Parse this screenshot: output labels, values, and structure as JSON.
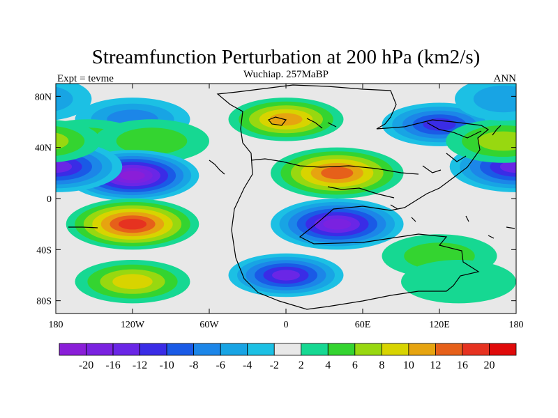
{
  "chart_data": {
    "type": "heatmap",
    "title": "Streamfunction Perturbation at 200 hPa (km2/s)",
    "subtitle": "Wuchiap. 257MaBP",
    "left_label": "Expt = tevme",
    "right_label": "ANN",
    "xlim": [
      -180,
      180
    ],
    "ylim": [
      -90,
      90
    ],
    "x_ticks": [
      {
        "value": -180,
        "label": "180"
      },
      {
        "value": -120,
        "label": "120W"
      },
      {
        "value": -60,
        "label": "60W"
      },
      {
        "value": 0,
        "label": "0"
      },
      {
        "value": 60,
        "label": "60E"
      },
      {
        "value": 120,
        "label": "120E"
      },
      {
        "value": 180,
        "label": "180"
      }
    ],
    "y_ticks": [
      {
        "value": 80,
        "label": "80N"
      },
      {
        "value": 40,
        "label": "40N"
      },
      {
        "value": 0,
        "label": "0"
      },
      {
        "value": -40,
        "label": "40S"
      },
      {
        "value": -80,
        "label": "80S"
      }
    ],
    "colorbar": {
      "levels": [
        "-20",
        "-16",
        "-12",
        "-10",
        "-8",
        "-6",
        "-4",
        "-2",
        "2",
        "4",
        "6",
        "8",
        "10",
        "12",
        "16",
        "20"
      ],
      "colors": [
        "#8a1ed8",
        "#7a22e0",
        "#6a26e6",
        "#3a2ce6",
        "#1a5ae6",
        "#1c86e8",
        "#18a4e4",
        "#1cc0e4",
        "#e8e8e8",
        "#16d892",
        "#34d430",
        "#98d810",
        "#d8d400",
        "#e6a410",
        "#e6601a",
        "#e63220",
        "#e00a0a"
      ],
      "orientation": "horizontal",
      "position": "bottom"
    },
    "field": {
      "units": "km2/s",
      "anomalies": [
        {
          "lon": -120,
          "lat": 62,
          "value": -6.5
        },
        {
          "lon": -155,
          "lat": 45,
          "value": 5
        },
        {
          "lon": -105,
          "lat": 45,
          "value": 5
        },
        {
          "lon": -120,
          "lat": 18,
          "value": -20
        },
        {
          "lon": -120,
          "lat": -20,
          "value": 18
        },
        {
          "lon": -120,
          "lat": -65,
          "value": 8
        },
        {
          "lon": 0,
          "lat": 62,
          "value": 10
        },
        {
          "lon": 40,
          "lat": 20,
          "value": 15
        },
        {
          "lon": 40,
          "lat": -20,
          "value": -18
        },
        {
          "lon": 0,
          "lat": -60,
          "value": -12
        },
        {
          "lon": 120,
          "lat": 58,
          "value": -10
        },
        {
          "lon": 180,
          "lat": 25,
          "value": -12
        },
        {
          "lon": 170,
          "lat": 45,
          "value": 6
        },
        {
          "lon": 120,
          "lat": -45,
          "value": 4
        },
        {
          "lon": 135,
          "lat": -65,
          "value": 3
        },
        {
          "lon": 170,
          "lat": 78,
          "value": -5
        }
      ]
    }
  }
}
